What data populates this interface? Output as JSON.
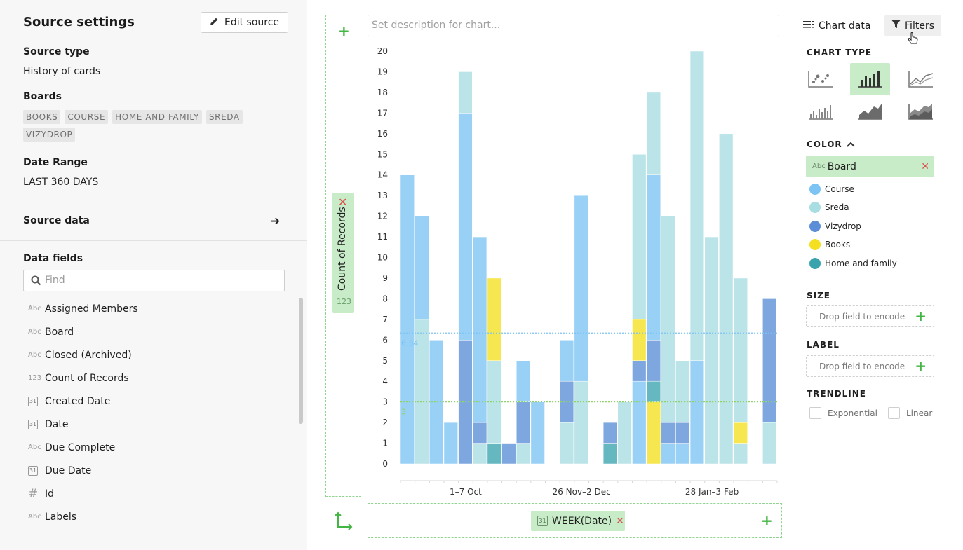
{
  "source_panel": {
    "title": "Source settings",
    "edit_button": "Edit source",
    "source_type_label": "Source type",
    "source_type_value": "History of cards",
    "boards_label": "Boards",
    "boards": [
      "BOOKS",
      "COURSE",
      "HOME AND FAMILY",
      "SREDA",
      "VIZYDROP"
    ],
    "date_range_label": "Date Range",
    "date_range_value": "LAST 360 DAYS",
    "source_data_label": "Source data",
    "data_fields_label": "Data fields",
    "search_placeholder": "Find",
    "fields": [
      {
        "name": "Assigned Members",
        "icon": "Abc"
      },
      {
        "name": "Board",
        "icon": "Abc"
      },
      {
        "name": "Closed (Archived)",
        "icon": "Abc"
      },
      {
        "name": "Count of Records",
        "icon": "123"
      },
      {
        "name": "Created Date",
        "icon": "31"
      },
      {
        "name": "Date",
        "icon": "31"
      },
      {
        "name": "Due Complete",
        "icon": "Abc"
      },
      {
        "name": "Due Date",
        "icon": "31"
      },
      {
        "name": "Id",
        "icon": "#"
      },
      {
        "name": "Labels",
        "icon": "Abc"
      }
    ]
  },
  "center": {
    "description_placeholder": "Set description for chart...",
    "y_pill_label": "Count of Records",
    "y_pill_type": "123",
    "x_pill_icon": "31",
    "x_pill_label": "WEEK(Date)"
  },
  "right_panel": {
    "tab_chart_data": "Chart data",
    "tab_filters": "Filters",
    "chart_type_label": "CHART TYPE",
    "color_label": "COLOR",
    "color_field_icon": "Abc",
    "color_field": "Board",
    "legend": [
      {
        "name": "Course",
        "color": "#7cc4f4"
      },
      {
        "name": "Sreda",
        "color": "#a8dde2"
      },
      {
        "name": "Vizydrop",
        "color": "#5b8ed6"
      },
      {
        "name": "Books",
        "color": "#f4e020"
      },
      {
        "name": "Home and family",
        "color": "#3aa3ae"
      }
    ],
    "size_label": "SIZE",
    "size_placeholder": "Drop field to encode",
    "label_label": "LABEL",
    "label_placeholder": "Drop field to encode",
    "trendline_label": "TRENDLINE",
    "trend_exponential": "Exponential",
    "trend_linear": "Linear"
  },
  "chart_data": {
    "type": "bar",
    "stacked": true,
    "ylim": [
      0,
      20
    ],
    "y_ticks": [
      0,
      1,
      2,
      3,
      4,
      5,
      6,
      7,
      8,
      9,
      10,
      11,
      12,
      13,
      14,
      15,
      16,
      17,
      18,
      19,
      20
    ],
    "x_tick_labels": [
      {
        "index": 4,
        "label": "1–7 Oct"
      },
      {
        "index": 12,
        "label": "26 Nov–2 Dec"
      },
      {
        "index": 21,
        "label": "28 Jan–3 Feb"
      }
    ],
    "reference_lines": [
      {
        "label": "6.34",
        "value": 6.34,
        "color": "#7cc4f4"
      },
      {
        "label": "3",
        "value": 3,
        "color": "#8fd46a"
      }
    ],
    "colors": {
      "Course": "#7cc4f4",
      "Sreda": "#a8dde2",
      "Vizydrop": "#5b8ed6",
      "Books": "#f4e020",
      "Home and family": "#3aa3ae"
    },
    "bars": [
      [
        {
          "s": "Course",
          "v": 14
        }
      ],
      [
        {
          "s": "Sreda",
          "v": 7
        },
        {
          "s": "Course",
          "v": 5
        }
      ],
      [
        {
          "s": "Course",
          "v": 6
        }
      ],
      [
        {
          "s": "Course",
          "v": 2
        }
      ],
      [
        {
          "s": "Vizydrop",
          "v": 6
        },
        {
          "s": "Course",
          "v": 11
        },
        {
          "s": "Sreda",
          "v": 2
        }
      ],
      [
        {
          "s": "Sreda",
          "v": 1
        },
        {
          "s": "Vizydrop",
          "v": 1
        },
        {
          "s": "Course",
          "v": 9
        }
      ],
      [
        {
          "s": "Home and family",
          "v": 1
        },
        {
          "s": "Sreda",
          "v": 4
        },
        {
          "s": "Books",
          "v": 4
        }
      ],
      [
        {
          "s": "Vizydrop",
          "v": 1
        }
      ],
      [
        {
          "s": "Sreda",
          "v": 1
        },
        {
          "s": "Vizydrop",
          "v": 2
        },
        {
          "s": "Course",
          "v": 2
        }
      ],
      [
        {
          "s": "Course",
          "v": 3
        }
      ],
      [],
      [
        {
          "s": "Sreda",
          "v": 2
        },
        {
          "s": "Vizydrop",
          "v": 2
        },
        {
          "s": "Course",
          "v": 2
        }
      ],
      [
        {
          "s": "Sreda",
          "v": 4
        },
        {
          "s": "Course",
          "v": 9
        }
      ],
      [],
      [
        {
          "s": "Home and family",
          "v": 1
        },
        {
          "s": "Vizydrop",
          "v": 1
        }
      ],
      [
        {
          "s": "Sreda",
          "v": 3
        }
      ],
      [
        {
          "s": "Course",
          "v": 4
        },
        {
          "s": "Vizydrop",
          "v": 1
        },
        {
          "s": "Books",
          "v": 2
        },
        {
          "s": "Sreda",
          "v": 8
        }
      ],
      [
        {
          "s": "Books",
          "v": 3
        },
        {
          "s": "Home and family",
          "v": 1
        },
        {
          "s": "Vizydrop",
          "v": 2
        },
        {
          "s": "Course",
          "v": 8
        },
        {
          "s": "Sreda",
          "v": 4
        }
      ],
      [
        {
          "s": "Course",
          "v": 1
        },
        {
          "s": "Vizydrop",
          "v": 1
        },
        {
          "s": "Sreda",
          "v": 10
        }
      ],
      [
        {
          "s": "Course",
          "v": 1
        },
        {
          "s": "Vizydrop",
          "v": 1
        },
        {
          "s": "Sreda",
          "v": 3
        }
      ],
      [
        {
          "s": "Course",
          "v": 5
        },
        {
          "s": "Sreda",
          "v": 15
        }
      ],
      [
        {
          "s": "Sreda",
          "v": 11
        }
      ],
      [
        {
          "s": "Sreda",
          "v": 16
        }
      ],
      [
        {
          "s": "Sreda",
          "v": 1
        },
        {
          "s": "Books",
          "v": 1
        },
        {
          "s": "Sreda",
          "v": 7
        }
      ],
      [],
      [
        {
          "s": "Sreda",
          "v": 2
        },
        {
          "s": "Vizydrop",
          "v": 6
        }
      ]
    ]
  }
}
